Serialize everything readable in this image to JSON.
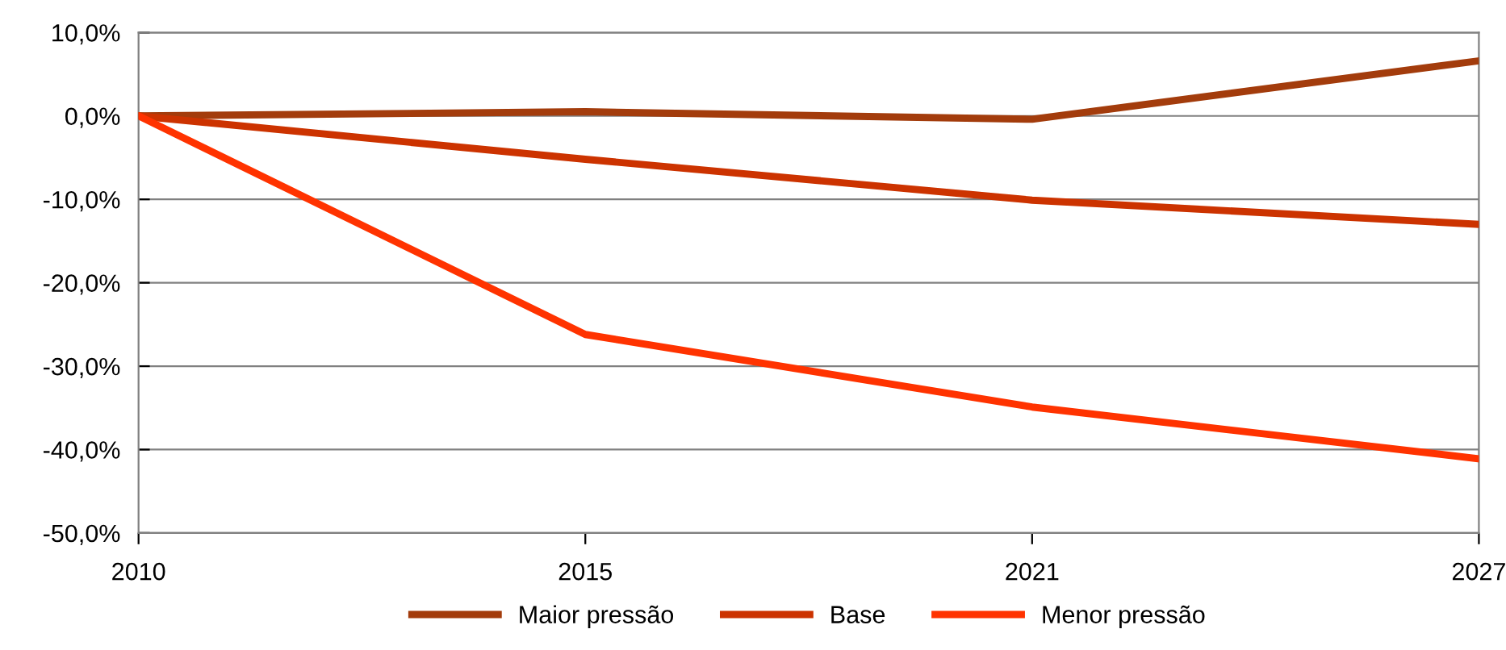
{
  "chart_data": {
    "type": "line",
    "categories": [
      "2010",
      "2015",
      "2021",
      "2027"
    ],
    "series": [
      {
        "name": "Maior pressão",
        "color": "#a33c0c",
        "values": [
          0,
          0.5,
          -0.4,
          6.6
        ]
      },
      {
        "name": "Base",
        "color": "#cc3300",
        "values": [
          0,
          -5.2,
          -10.1,
          -13.0
        ]
      },
      {
        "name": "Menor pressão",
        "color": "#ff3300",
        "values": [
          0,
          -26.2,
          -34.9,
          -41.1
        ]
      }
    ],
    "ylim": [
      -50,
      10
    ],
    "yticks": [
      {
        "value": -50,
        "label": "-50,0%"
      },
      {
        "value": -40,
        "label": "-40,0%"
      },
      {
        "value": -30,
        "label": "-30,0%"
      },
      {
        "value": -20,
        "label": "-20,0%"
      },
      {
        "value": -10,
        "label": "-10,0%"
      },
      {
        "value": 0,
        "label": "0,0%"
      },
      {
        "value": 10,
        "label": "10,0%"
      }
    ],
    "grid": "y",
    "legend": "bottom",
    "marker": "none",
    "line_style": "solid"
  }
}
